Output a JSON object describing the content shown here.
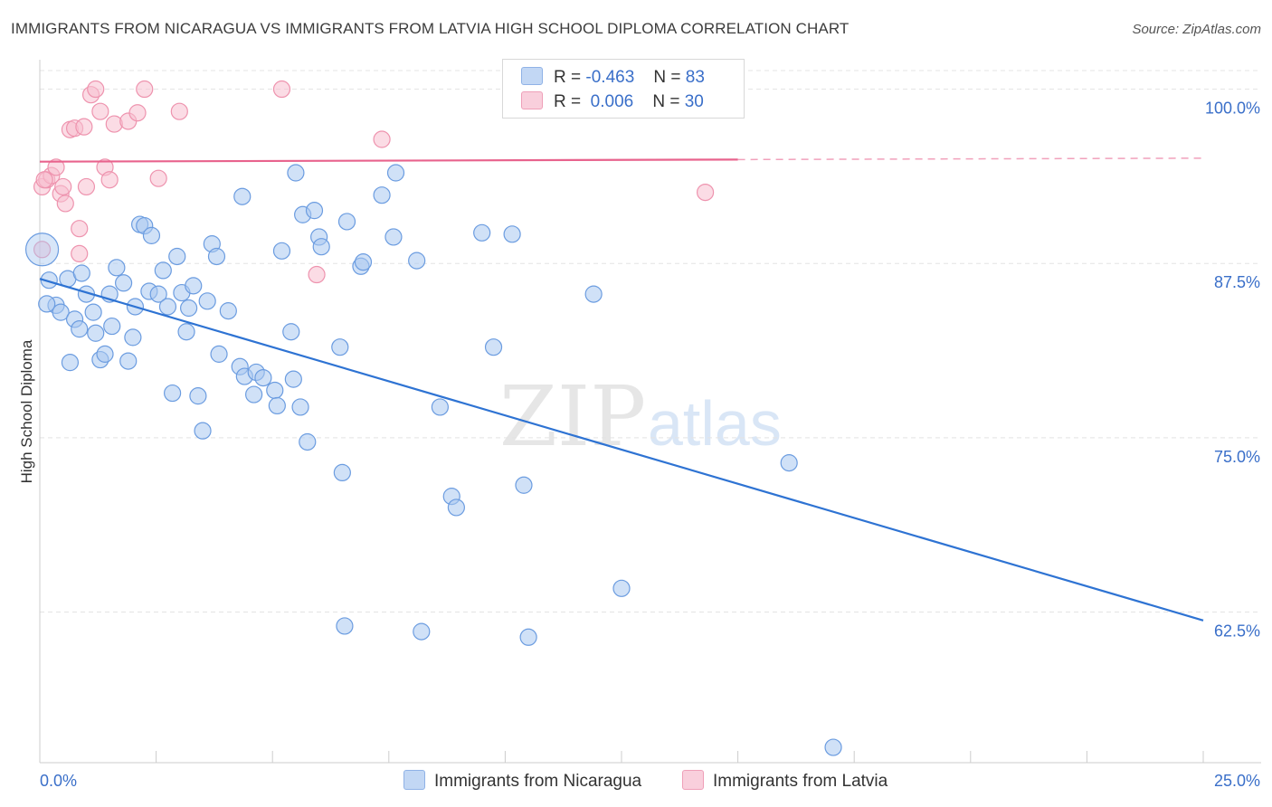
{
  "title": "IMMIGRANTS FROM NICARAGUA VS IMMIGRANTS FROM LATVIA HIGH SCHOOL DIPLOMA CORRELATION CHART",
  "source": "Source: ZipAtlas.com",
  "watermark": {
    "zip": "ZIP",
    "atlas": "atlas"
  },
  "colors": {
    "nicaragua_fill": "#a9c8f0",
    "nicaragua_stroke": "#6b9ce0",
    "nicaragua_line": "#2e73d3",
    "latvia_fill": "#f7bfd0",
    "latvia_stroke": "#ee93ae",
    "latvia_line": "#e8638d",
    "axis_label": "#3a6fc9"
  },
  "legend": {
    "rows": [
      {
        "r_label": "R =",
        "r_value": "-0.463",
        "n_label": "N =",
        "n_value": "83"
      },
      {
        "r_label": "R =",
        "r_value": " 0.006",
        "n_label": "N =",
        "n_value": "30"
      }
    ]
  },
  "bottom_legend": {
    "nicaragua": "Immigrants from Nicaragua",
    "latvia": "Immigrants from Latvia"
  },
  "chart_data": {
    "type": "scatter",
    "title": "IMMIGRANTS FROM NICARAGUA VS IMMIGRANTS FROM LATVIA HIGH SCHOOL DIPLOMA CORRELATION CHART",
    "xlabel": "",
    "ylabel": "High School Diploma",
    "xlim": [
      0,
      25
    ],
    "ylim": [
      51.7,
      102.5
    ],
    "x_tick_labels": [
      "0.0%",
      "25.0%"
    ],
    "y_ticks": [
      100,
      87.5,
      75,
      62.5
    ],
    "y_tick_labels": [
      "100.0%",
      "87.5%",
      "75.0%",
      "62.5%"
    ],
    "grid": true,
    "legend_position": "top-center",
    "series": [
      {
        "name": "Immigrants from Nicaragua",
        "points": [
          [
            0.05,
            88.5
          ],
          [
            0.2,
            86.3
          ],
          [
            0.35,
            84.5
          ],
          [
            0.45,
            84.0
          ],
          [
            0.6,
            86.4
          ],
          [
            0.65,
            80.4
          ],
          [
            0.75,
            83.5
          ],
          [
            0.85,
            82.8
          ],
          [
            0.9,
            86.8
          ],
          [
            1.0,
            85.3
          ],
          [
            1.15,
            84.0
          ],
          [
            1.2,
            82.5
          ],
          [
            1.3,
            80.6
          ],
          [
            1.4,
            81.0
          ],
          [
            1.5,
            85.3
          ],
          [
            1.55,
            83.0
          ],
          [
            1.65,
            87.2
          ],
          [
            1.8,
            86.1
          ],
          [
            1.9,
            80.5
          ],
          [
            2.0,
            82.2
          ],
          [
            2.05,
            84.4
          ],
          [
            2.15,
            90.3
          ],
          [
            2.25,
            90.2
          ],
          [
            2.35,
            85.5
          ],
          [
            2.4,
            89.5
          ],
          [
            2.55,
            85.3
          ],
          [
            2.65,
            87.0
          ],
          [
            2.75,
            84.4
          ],
          [
            2.85,
            78.2
          ],
          [
            2.95,
            88.0
          ],
          [
            3.05,
            85.4
          ],
          [
            3.15,
            82.6
          ],
          [
            3.2,
            84.3
          ],
          [
            3.3,
            85.9
          ],
          [
            3.4,
            78.0
          ],
          [
            3.5,
            75.5
          ],
          [
            3.6,
            84.8
          ],
          [
            3.7,
            88.9
          ],
          [
            3.8,
            88.0
          ],
          [
            3.85,
            81.0
          ],
          [
            4.05,
            84.1
          ],
          [
            4.3,
            80.1
          ],
          [
            4.35,
            92.3
          ],
          [
            4.4,
            79.4
          ],
          [
            4.6,
            78.1
          ],
          [
            4.65,
            79.7
          ],
          [
            4.8,
            79.3
          ],
          [
            5.05,
            78.4
          ],
          [
            5.1,
            77.3
          ],
          [
            5.2,
            88.4
          ],
          [
            5.4,
            82.6
          ],
          [
            5.45,
            79.2
          ],
          [
            5.5,
            94.0
          ],
          [
            5.6,
            77.2
          ],
          [
            5.65,
            91.0
          ],
          [
            5.75,
            74.7
          ],
          [
            5.9,
            91.3
          ],
          [
            6.0,
            89.4
          ],
          [
            6.05,
            88.7
          ],
          [
            6.45,
            81.5
          ],
          [
            6.5,
            72.5
          ],
          [
            6.55,
            61.5
          ],
          [
            6.6,
            90.5
          ],
          [
            6.9,
            87.3
          ],
          [
            6.95,
            87.6
          ],
          [
            7.35,
            92.4
          ],
          [
            7.6,
            89.4
          ],
          [
            7.65,
            94.0
          ],
          [
            8.1,
            87.7
          ],
          [
            8.2,
            61.1
          ],
          [
            8.6,
            77.2
          ],
          [
            8.85,
            70.8
          ],
          [
            8.95,
            70.0
          ],
          [
            9.5,
            89.7
          ],
          [
            9.75,
            81.5
          ],
          [
            10.15,
            89.6
          ],
          [
            10.4,
            71.6
          ],
          [
            10.5,
            60.7
          ],
          [
            11.9,
            85.3
          ],
          [
            12.5,
            64.2
          ],
          [
            16.1,
            73.2
          ],
          [
            17.05,
            52.8
          ],
          [
            0.15,
            84.6
          ]
        ],
        "trendline": {
          "x": [
            0,
            25
          ],
          "y": [
            86.4,
            61.9
          ]
        }
      },
      {
        "name": "Immigrants from Latvia",
        "points": [
          [
            0.05,
            93.0
          ],
          [
            0.15,
            93.5
          ],
          [
            0.25,
            93.8
          ],
          [
            0.35,
            94.4
          ],
          [
            0.45,
            92.5
          ],
          [
            0.5,
            93.0
          ],
          [
            0.55,
            91.8
          ],
          [
            0.65,
            97.1
          ],
          [
            0.75,
            97.2
          ],
          [
            0.85,
            90.0
          ],
          [
            0.85,
            88.2
          ],
          [
            0.95,
            97.3
          ],
          [
            1.0,
            93.0
          ],
          [
            1.1,
            99.6
          ],
          [
            1.2,
            100.0
          ],
          [
            1.3,
            98.4
          ],
          [
            1.4,
            94.4
          ],
          [
            1.5,
            93.5
          ],
          [
            1.6,
            97.5
          ],
          [
            1.9,
            97.7
          ],
          [
            2.1,
            98.3
          ],
          [
            2.25,
            100.0
          ],
          [
            2.55,
            93.6
          ],
          [
            3.0,
            98.4
          ],
          [
            5.2,
            100.0
          ],
          [
            5.95,
            86.7
          ],
          [
            7.35,
            96.4
          ],
          [
            14.3,
            92.6
          ],
          [
            0.05,
            88.5
          ],
          [
            0.1,
            93.5
          ]
        ],
        "trendline": {
          "x": [
            0,
            15
          ],
          "y": [
            94.8,
            94.95
          ],
          "dashed_to": [
            25,
            95.05
          ]
        }
      }
    ]
  }
}
